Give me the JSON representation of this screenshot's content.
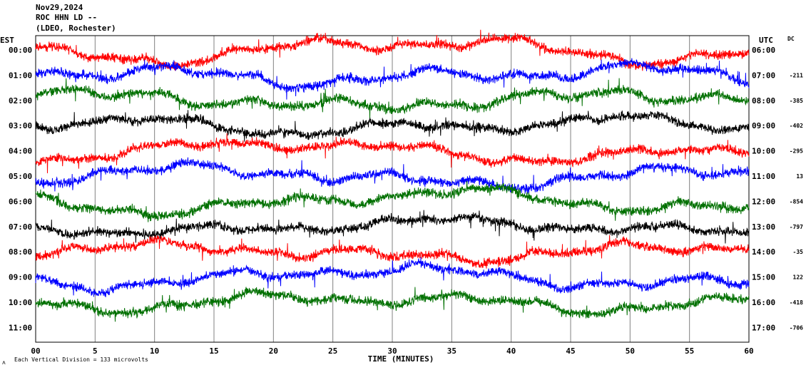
{
  "header": {
    "date": "Nov29,2024",
    "station": "ROC HHN LD --",
    "network": "(LDEO, Rochester)"
  },
  "footer": {
    "note": "Each Vertical Division = 133 microvolts",
    "corner_mark": "ʌ"
  },
  "colors": {
    "red": "#ff0000",
    "blue": "#0000ff",
    "green": "#007000",
    "black": "#000000",
    "grid": "#808080"
  },
  "chart_data": {
    "type": "line",
    "title": "",
    "xlabel": "TIME (MINUTES)",
    "left_axis_label": "EST",
    "right_axis_label": "UTC",
    "dc_label": "DC",
    "xlim": [
      0,
      60
    ],
    "x_ticks": [
      "00",
      "5",
      "10",
      "15",
      "20",
      "25",
      "30",
      "35",
      "40",
      "45",
      "50",
      "55",
      "60"
    ],
    "grid": true,
    "hours_est": [
      "00:00",
      "01:00",
      "02:00",
      "03:00",
      "04:00",
      "05:00",
      "06:00",
      "07:00",
      "08:00",
      "09:00",
      "10:00",
      "11:00"
    ],
    "hours_utc": [
      "06:00",
      "07:00",
      "08:00",
      "09:00",
      "10:00",
      "11:00",
      "12:00",
      "13:00",
      "14:00",
      "15:00",
      "16:00",
      "17:00"
    ],
    "dc_offsets": [
      "",
      "-211",
      "-385",
      "-402",
      "-295",
      "13",
      "-854",
      "-797",
      "-35",
      "122",
      "-418",
      "-706"
    ],
    "trace_colors": [
      "red",
      "blue",
      "green",
      "black"
    ],
    "rows": [
      {
        "hour": "00:00",
        "color": "red",
        "recorded_until": 60
      },
      {
        "hour": "01:00",
        "color": "blue",
        "recorded_until": 60
      },
      {
        "hour": "02:00",
        "color": "green",
        "recorded_until": 60
      },
      {
        "hour": "03:00",
        "color": "black",
        "recorded_until": 60
      },
      {
        "hour": "04:00",
        "color": "red",
        "recorded_until": 60
      },
      {
        "hour": "05:00",
        "color": "blue",
        "recorded_until": 60
      },
      {
        "hour": "06:00",
        "color": "green",
        "recorded_until": 60
      },
      {
        "hour": "07:00",
        "color": "black",
        "recorded_until": 60
      },
      {
        "hour": "08:00",
        "color": "red",
        "recorded_until": 60
      },
      {
        "hour": "09:00",
        "color": "blue",
        "recorded_until": 60
      },
      {
        "hour": "10:00",
        "color": "green",
        "recorded_until": 60
      },
      {
        "hour": "11:00",
        "color": "black",
        "recorded_until": 0
      }
    ]
  }
}
